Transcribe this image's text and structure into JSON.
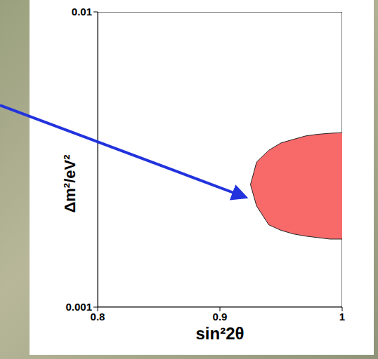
{
  "chart_data": {
    "type": "area",
    "xlabel": "sin²2θ",
    "ylabel": "Δm²/eV²",
    "x": [
      0.925,
      0.93,
      0.94,
      0.95,
      0.96,
      0.97,
      0.98,
      0.99,
      1.0
    ],
    "lower": [
      0.0026,
      0.0022,
      0.0019,
      0.00182,
      0.00177,
      0.00174,
      0.00172,
      0.0017,
      0.0017
    ],
    "upper": [
      0.0026,
      0.0031,
      0.0034,
      0.0036,
      0.0037,
      0.0038,
      0.00385,
      0.00388,
      0.0039
    ],
    "color": "#f86a6a",
    "xlim": [
      0.8,
      1
    ],
    "xticks": [
      0.8,
      0.9,
      1
    ],
    "ylim": [
      0.001,
      0.01
    ],
    "yticks": [
      0.001,
      0.01
    ],
    "log": "y",
    "grid": false
  }
}
